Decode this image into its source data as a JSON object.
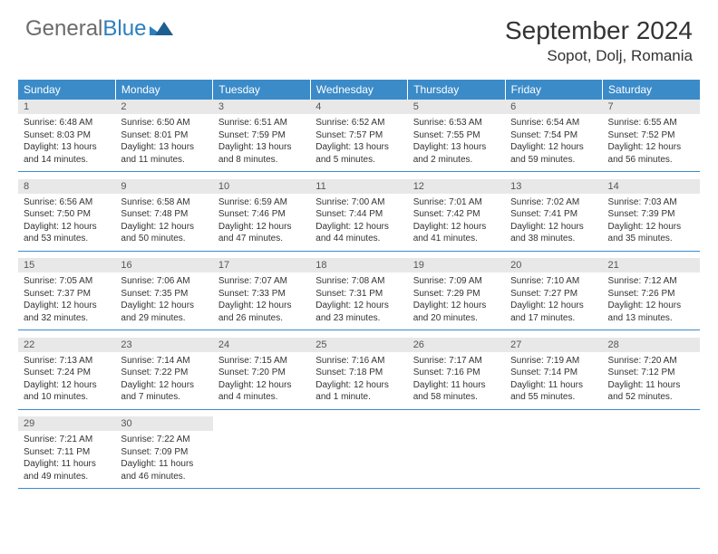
{
  "logo": {
    "part1": "General",
    "part2": "Blue"
  },
  "title": "September 2024",
  "location": "Sopot, Dolj, Romania",
  "colors": {
    "header_bg": "#3b8bc9",
    "header_text": "#ffffff",
    "daynum_bg": "#e8e8e8",
    "cell_border": "#3b8bc9",
    "logo_gray": "#6b6b6b",
    "logo_blue": "#2b7fbf"
  },
  "day_headers": [
    "Sunday",
    "Monday",
    "Tuesday",
    "Wednesday",
    "Thursday",
    "Friday",
    "Saturday"
  ],
  "weeks": [
    [
      {
        "n": "1",
        "sr": "6:48 AM",
        "ss": "8:03 PM",
        "dl": "13 hours and 14 minutes."
      },
      {
        "n": "2",
        "sr": "6:50 AM",
        "ss": "8:01 PM",
        "dl": "13 hours and 11 minutes."
      },
      {
        "n": "3",
        "sr": "6:51 AM",
        "ss": "7:59 PM",
        "dl": "13 hours and 8 minutes."
      },
      {
        "n": "4",
        "sr": "6:52 AM",
        "ss": "7:57 PM",
        "dl": "13 hours and 5 minutes."
      },
      {
        "n": "5",
        "sr": "6:53 AM",
        "ss": "7:55 PM",
        "dl": "13 hours and 2 minutes."
      },
      {
        "n": "6",
        "sr": "6:54 AM",
        "ss": "7:54 PM",
        "dl": "12 hours and 59 minutes."
      },
      {
        "n": "7",
        "sr": "6:55 AM",
        "ss": "7:52 PM",
        "dl": "12 hours and 56 minutes."
      }
    ],
    [
      {
        "n": "8",
        "sr": "6:56 AM",
        "ss": "7:50 PM",
        "dl": "12 hours and 53 minutes."
      },
      {
        "n": "9",
        "sr": "6:58 AM",
        "ss": "7:48 PM",
        "dl": "12 hours and 50 minutes."
      },
      {
        "n": "10",
        "sr": "6:59 AM",
        "ss": "7:46 PM",
        "dl": "12 hours and 47 minutes."
      },
      {
        "n": "11",
        "sr": "7:00 AM",
        "ss": "7:44 PM",
        "dl": "12 hours and 44 minutes."
      },
      {
        "n": "12",
        "sr": "7:01 AM",
        "ss": "7:42 PM",
        "dl": "12 hours and 41 minutes."
      },
      {
        "n": "13",
        "sr": "7:02 AM",
        "ss": "7:41 PM",
        "dl": "12 hours and 38 minutes."
      },
      {
        "n": "14",
        "sr": "7:03 AM",
        "ss": "7:39 PM",
        "dl": "12 hours and 35 minutes."
      }
    ],
    [
      {
        "n": "15",
        "sr": "7:05 AM",
        "ss": "7:37 PM",
        "dl": "12 hours and 32 minutes."
      },
      {
        "n": "16",
        "sr": "7:06 AM",
        "ss": "7:35 PM",
        "dl": "12 hours and 29 minutes."
      },
      {
        "n": "17",
        "sr": "7:07 AM",
        "ss": "7:33 PM",
        "dl": "12 hours and 26 minutes."
      },
      {
        "n": "18",
        "sr": "7:08 AM",
        "ss": "7:31 PM",
        "dl": "12 hours and 23 minutes."
      },
      {
        "n": "19",
        "sr": "7:09 AM",
        "ss": "7:29 PM",
        "dl": "12 hours and 20 minutes."
      },
      {
        "n": "20",
        "sr": "7:10 AM",
        "ss": "7:27 PM",
        "dl": "12 hours and 17 minutes."
      },
      {
        "n": "21",
        "sr": "7:12 AM",
        "ss": "7:26 PM",
        "dl": "12 hours and 13 minutes."
      }
    ],
    [
      {
        "n": "22",
        "sr": "7:13 AM",
        "ss": "7:24 PM",
        "dl": "12 hours and 10 minutes."
      },
      {
        "n": "23",
        "sr": "7:14 AM",
        "ss": "7:22 PM",
        "dl": "12 hours and 7 minutes."
      },
      {
        "n": "24",
        "sr": "7:15 AM",
        "ss": "7:20 PM",
        "dl": "12 hours and 4 minutes."
      },
      {
        "n": "25",
        "sr": "7:16 AM",
        "ss": "7:18 PM",
        "dl": "12 hours and 1 minute."
      },
      {
        "n": "26",
        "sr": "7:17 AM",
        "ss": "7:16 PM",
        "dl": "11 hours and 58 minutes."
      },
      {
        "n": "27",
        "sr": "7:19 AM",
        "ss": "7:14 PM",
        "dl": "11 hours and 55 minutes."
      },
      {
        "n": "28",
        "sr": "7:20 AM",
        "ss": "7:12 PM",
        "dl": "11 hours and 52 minutes."
      }
    ],
    [
      {
        "n": "29",
        "sr": "7:21 AM",
        "ss": "7:11 PM",
        "dl": "11 hours and 49 minutes."
      },
      {
        "n": "30",
        "sr": "7:22 AM",
        "ss": "7:09 PM",
        "dl": "11 hours and 46 minutes."
      },
      null,
      null,
      null,
      null,
      null
    ]
  ],
  "labels": {
    "sunrise": "Sunrise:",
    "sunset": "Sunset:",
    "daylight": "Daylight:"
  }
}
